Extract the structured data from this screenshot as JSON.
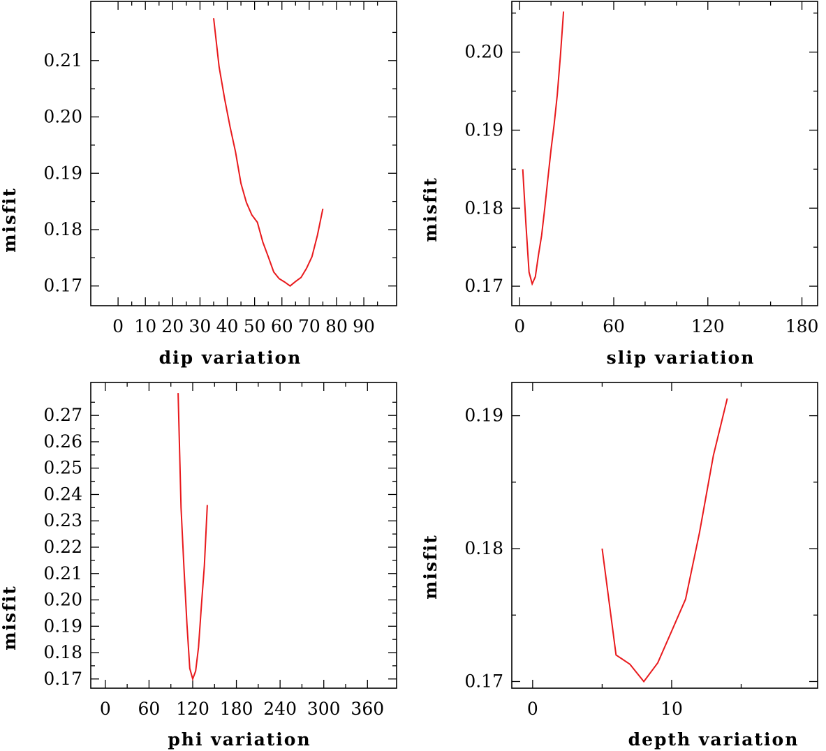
{
  "chart_data": [
    {
      "id": "dip",
      "type": "line",
      "xlabel": "dip     variation",
      "ylabel": "misfit",
      "xlim": [
        -10,
        102
      ],
      "ylim": [
        0.1665,
        0.2205
      ],
      "xticks": [
        0,
        10,
        20,
        30,
        40,
        50,
        60,
        70,
        80,
        90
      ],
      "xtick_labels": [
        "0",
        "10",
        "20",
        "30",
        "40",
        "50",
        "60",
        "70",
        "80",
        "90"
      ],
      "xminor": [
        5,
        15,
        25,
        35,
        45,
        55,
        65,
        75,
        85,
        95
      ],
      "yticks": [
        0.17,
        0.18,
        0.19,
        0.2,
        0.21
      ],
      "ytick_labels": [
        "0.17",
        "0.18",
        "0.19",
        "0.20",
        "0.21"
      ],
      "yminor": [
        0.175,
        0.185,
        0.195,
        0.205,
        0.215
      ],
      "series": [
        {
          "color": "#e8191c",
          "x": [
            35,
            37,
            39,
            41,
            43,
            45,
            47,
            49,
            51,
            53,
            55,
            57,
            59,
            61,
            63,
            65,
            67,
            69,
            71,
            73,
            75
          ],
          "y": [
            0.2175,
            0.2089,
            0.2033,
            0.1983,
            0.1938,
            0.1882,
            0.1848,
            0.1826,
            0.1813,
            0.1778,
            0.1752,
            0.1725,
            0.1713,
            0.1707,
            0.17,
            0.1708,
            0.1715,
            0.1731,
            0.1752,
            0.179,
            0.1837
          ]
        }
      ]
    },
    {
      "id": "slip",
      "type": "line",
      "xlabel": "slip    variation",
      "ylabel": "misfit",
      "xlim": [
        -5,
        190
      ],
      "ylim": [
        0.1675,
        0.2065
      ],
      "xticks": [
        0,
        60,
        120,
        180
      ],
      "xtick_labels": [
        "0",
        "60",
        "120",
        "180"
      ],
      "xminor": [
        20,
        40,
        80,
        100,
        140,
        160
      ],
      "yticks": [
        0.17,
        0.18,
        0.19,
        0.2
      ],
      "ytick_labels": [
        "0.17",
        "0.18",
        "0.19",
        "0.20"
      ],
      "yminor": [
        0.175,
        0.185,
        0.195,
        0.205
      ],
      "series": [
        {
          "color": "#e8191c",
          "x": [
            2,
            4,
            6,
            8,
            10,
            12,
            14,
            16,
            18,
            20,
            22,
            24,
            26,
            28
          ],
          "y": [
            0.185,
            0.178,
            0.1718,
            0.1703,
            0.1712,
            0.174,
            0.1765,
            0.18,
            0.1838,
            0.1875,
            0.1907,
            0.1945,
            0.1995,
            0.2052
          ]
        }
      ]
    },
    {
      "id": "phi",
      "type": "line",
      "xlabel": "phi     variation",
      "ylabel": "misfit",
      "xlim": [
        -20,
        400
      ],
      "ylim": [
        0.1665,
        0.2825
      ],
      "xticks": [
        0,
        60,
        120,
        180,
        240,
        300,
        360
      ],
      "xtick_labels": [
        "0",
        "60",
        "120",
        "180",
        "240",
        "300",
        "360"
      ],
      "xminor": [
        30,
        90,
        150,
        210,
        270,
        330
      ],
      "yticks": [
        0.17,
        0.18,
        0.19,
        0.2,
        0.21,
        0.22,
        0.23,
        0.24,
        0.25,
        0.26,
        0.27
      ],
      "ytick_labels": [
        "0.17",
        "0.18",
        "0.19",
        "0.20",
        "0.21",
        "0.22",
        "0.23",
        "0.24",
        "0.25",
        "0.26",
        "0.27"
      ],
      "yminor": [
        0.175,
        0.185,
        0.195,
        0.205,
        0.215,
        0.225,
        0.235,
        0.245,
        0.255,
        0.265,
        0.275
      ],
      "series": [
        {
          "color": "#e8191c",
          "x": [
            100,
            104,
            108,
            112,
            116,
            120,
            124,
            128,
            132,
            136,
            140
          ],
          "y": [
            0.2785,
            0.235,
            0.212,
            0.191,
            0.174,
            0.17,
            0.173,
            0.182,
            0.198,
            0.213,
            0.236
          ]
        }
      ]
    },
    {
      "id": "depth",
      "type": "line",
      "xlabel": "depth  variation",
      "ylabel": "misfit",
      "xlim": [
        -1.5,
        20.5
      ],
      "ylim": [
        0.1695,
        0.1925
      ],
      "xticks": [
        0,
        10
      ],
      "xtick_labels": [
        "0",
        "10"
      ],
      "xminor": [
        5,
        15
      ],
      "yticks": [
        0.17,
        0.18,
        0.19
      ],
      "ytick_labels": [
        "0.17",
        "0.18",
        "0.19"
      ],
      "yminor": [
        0.175,
        0.185
      ],
      "series": [
        {
          "color": "#e8191c",
          "x": [
            5,
            6,
            7,
            8,
            9,
            10,
            11,
            12,
            13,
            14
          ],
          "y": [
            0.18,
            0.172,
            0.1713,
            0.17,
            0.1714,
            0.1738,
            0.1762,
            0.1812,
            0.187,
            0.1913
          ]
        }
      ]
    }
  ]
}
